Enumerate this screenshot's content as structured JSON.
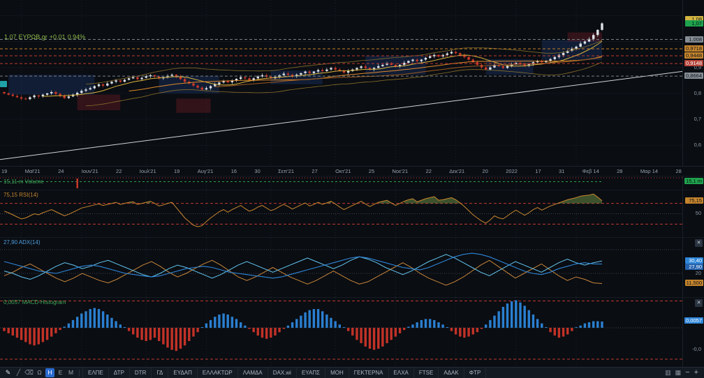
{
  "ui": {
    "close_glyph": "✕"
  },
  "main_chart": {
    "legend": {
      "price": "1,07",
      "symbol": "ΕΥΡΩΒ.gr",
      "change": "+0,01",
      "change_pct": "0,94%"
    },
    "scale_badges": [
      {
        "text": "1,08",
        "price": 1.085,
        "type": "yellow"
      },
      {
        "text": "1,07",
        "price": 1.068,
        "type": "green"
      },
      {
        "text": "1,008",
        "price": 1.008,
        "type": "gray"
      },
      {
        "text": "0,9718",
        "price": 0.9718,
        "type": "orange"
      },
      {
        "text": "0,9448",
        "price": 0.9448,
        "type": "orange"
      },
      {
        "text": "0,9148",
        "price": 0.9148,
        "type": "red"
      },
      {
        "text": "0,8664",
        "price": 0.8664,
        "type": "gray"
      }
    ],
    "scale_ticks": [
      {
        "text": "0,9",
        "price": 0.9
      },
      {
        "text": "0,8",
        "price": 0.8
      },
      {
        "text": "0,7",
        "price": 0.7
      },
      {
        "text": "0,6",
        "price": 0.6
      }
    ]
  },
  "time_axis": [
    "19",
    "Μαϊ'21",
    "24",
    "Ιουν'21",
    "22",
    "Ιουλ'21",
    "19",
    "Αυγ'21",
    "16",
    "30",
    "Σεπ'21",
    "27",
    "Οκτ'21",
    "25",
    "Νοε'21",
    "22",
    "Δεκ'21",
    "20",
    "2022",
    "17",
    "31",
    "Φεβ 14",
    "28",
    "Μαρ 14",
    "28"
  ],
  "volume_panel": {
    "legend": "15,11 m Volume",
    "badge": "15,1 m"
  },
  "rsi_panel": {
    "legend": "75,15 RSI(14)",
    "badge": "75,15",
    "tick": "50"
  },
  "adx_panel": {
    "legend": "27,90 ADX(14)",
    "tick": "20",
    "badges": [
      {
        "text": "30,40",
        "value": 30.4,
        "type": "blue"
      },
      {
        "text": "27,90",
        "value": 27.9,
        "type": "blue2"
      },
      {
        "text": "11,500",
        "value": 11.5,
        "type": "orange"
      }
    ]
  },
  "macd_panel": {
    "legend": "0,0057 MACD-Histogram",
    "badge": "0,0057",
    "tick": "-0,0"
  },
  "toolbar": {
    "tools": [
      {
        "name": "pencil-icon",
        "glyph": "✎",
        "bright": true
      },
      {
        "name": "line-tool-icon",
        "glyph": "╱",
        "bright": false
      },
      {
        "name": "eraser-icon",
        "glyph": "⌫",
        "bright": false
      }
    ],
    "intervals": [
      "Ω",
      "Η",
      "Ε",
      "Μ"
    ],
    "active_interval": "Η",
    "tabs": [
      "ΕΛΠΕ",
      "ΔΤΡ",
      "DTR",
      "ΓΔ",
      "ΕΥΔΑΠ",
      "ΕΛΛΑΚΤΩΡ",
      "ΛΑΜΔΑ",
      "DAX.wi",
      "ΕΥΑΠΣ",
      "ΜΟΗ",
      "ΓΕΚΤΕΡΝΑ",
      "ΕΛΧΑ",
      "FTSE",
      "ΑΔΑΚ",
      "ΦΤΡ"
    ],
    "right_controls": [
      {
        "name": "volume-style-icon",
        "glyph": "▥",
        "big": false
      },
      {
        "name": "indicators-icon",
        "glyph": "▦",
        "big": false
      },
      {
        "name": "zoom-out-button",
        "glyph": "−",
        "big": true
      },
      {
        "name": "zoom-in-button",
        "glyph": "+",
        "big": true
      }
    ]
  },
  "chart_data": {
    "type": "candlestick",
    "symbol": "ΕΥΡΩΒ.gr",
    "last_price": 1.07,
    "change": 0.01,
    "change_pct": 0.94,
    "price_axis": {
      "min": 0.52,
      "max": 1.16
    },
    "closes": [
      0.8,
      0.795,
      0.79,
      0.785,
      0.78,
      0.778,
      0.785,
      0.792,
      0.788,
      0.795,
      0.8,
      0.805,
      0.798,
      0.79,
      0.782,
      0.788,
      0.795,
      0.802,
      0.81,
      0.815,
      0.82,
      0.828,
      0.835,
      0.83,
      0.838,
      0.845,
      0.85,
      0.845,
      0.852,
      0.858,
      0.862,
      0.855,
      0.86,
      0.866,
      0.87,
      0.865,
      0.858,
      0.862,
      0.868,
      0.872,
      0.865,
      0.855,
      0.845,
      0.838,
      0.83,
      0.822,
      0.815,
      0.82,
      0.828,
      0.835,
      0.842,
      0.848,
      0.843,
      0.85,
      0.856,
      0.862,
      0.858,
      0.852,
      0.858,
      0.865,
      0.87,
      0.864,
      0.858,
      0.863,
      0.87,
      0.876,
      0.872,
      0.866,
      0.872,
      0.878,
      0.884,
      0.878,
      0.884,
      0.89,
      0.886,
      0.892,
      0.898,
      0.892,
      0.886,
      0.88,
      0.886,
      0.892,
      0.898,
      0.904,
      0.898,
      0.892,
      0.898,
      0.905,
      0.91,
      0.916,
      0.91,
      0.904,
      0.91,
      0.918,
      0.925,
      0.93,
      0.924,
      0.93,
      0.937,
      0.943,
      0.948,
      0.942,
      0.948,
      0.954,
      0.96,
      0.955,
      0.948,
      0.94,
      0.93,
      0.92,
      0.91,
      0.9,
      0.892,
      0.9,
      0.91,
      0.905,
      0.898,
      0.905,
      0.912,
      0.918,
      0.912,
      0.906,
      0.912,
      0.92,
      0.926,
      0.92,
      0.926,
      0.932,
      0.94,
      0.948,
      0.956,
      0.964,
      0.972,
      0.98,
      0.992,
      1.0,
      1.01,
      1.025,
      1.045,
      1.07
    ],
    "month_gridlines": [
      4,
      18,
      33,
      47,
      62,
      77,
      91,
      105,
      119,
      133
    ],
    "zones": [
      {
        "i0": 1,
        "i1": 21,
        "p0": 0.795,
        "p1": 0.872,
        "c": "navy"
      },
      {
        "i0": 17,
        "i1": 27,
        "p0": 0.735,
        "p1": 0.795,
        "c": "maroon"
      },
      {
        "i0": 36,
        "i1": 50,
        "p0": 0.8,
        "p1": 0.868,
        "c": "navy"
      },
      {
        "i0": 40,
        "i1": 48,
        "p0": 0.725,
        "p1": 0.78,
        "c": "maroon"
      },
      {
        "i0": 62,
        "i1": 74,
        "p0": 0.835,
        "p1": 0.888,
        "c": "navy"
      },
      {
        "i0": 84,
        "i1": 98,
        "p0": 0.872,
        "p1": 0.945,
        "c": "navy"
      },
      {
        "i0": 112,
        "i1": 123,
        "p0": 0.872,
        "p1": 0.932,
        "c": "navy"
      },
      {
        "i0": 125,
        "i1": 139,
        "p0": 0.928,
        "p1": 1.005,
        "c": "navy"
      },
      {
        "i0": 131,
        "i1": 139,
        "p0": 1.0,
        "p1": 1.035,
        "c": "maroon"
      }
    ],
    "trendline": {
      "p_start": 0.545,
      "p_end": 0.885
    },
    "hlines": [
      {
        "p": 1.008,
        "color": "#7a8288"
      },
      {
        "p": 0.9718,
        "color": "#c5842c"
      },
      {
        "p": 0.9448,
        "color": "#c03a30"
      },
      {
        "p": 0.9148,
        "color": "#c03a30"
      },
      {
        "p": 0.8664,
        "color": "#7a8288"
      }
    ],
    "volume": {
      "current_m": 15.11,
      "spike_index": 17
    },
    "rsi": {
      "period": 14,
      "current": 75.15,
      "overbought": 70,
      "oversold": 30,
      "values": [
        55,
        52,
        48,
        44,
        40,
        42,
        46,
        50,
        48,
        52,
        55,
        58,
        54,
        50,
        46,
        49,
        53,
        57,
        61,
        63,
        65,
        67,
        69,
        66,
        68,
        70,
        72,
        68,
        70,
        72,
        73,
        68,
        70,
        72,
        74,
        70,
        65,
        67,
        70,
        72,
        62,
        52,
        42,
        35,
        28,
        25,
        27,
        35,
        42,
        48,
        54,
        58,
        53,
        58,
        62,
        66,
        60,
        55,
        58,
        63,
        66,
        61,
        56,
        59,
        64,
        68,
        64,
        59,
        63,
        67,
        71,
        65,
        68,
        72,
        68,
        71,
        74,
        69,
        63,
        58,
        62,
        66,
        70,
        74,
        69,
        64,
        68,
        72,
        74,
        76,
        71,
        66,
        70,
        74,
        77,
        79,
        73,
        76,
        79,
        81,
        83,
        76,
        77,
        79,
        81,
        77,
        71,
        64,
        56,
        48,
        42,
        36,
        32,
        38,
        46,
        42,
        40,
        46,
        52,
        57,
        52,
        47,
        52,
        58,
        62,
        57,
        61,
        65,
        68,
        71,
        74,
        77,
        79,
        81,
        84,
        85,
        86,
        88,
        82,
        75
      ]
    },
    "adx": {
      "period": 14,
      "current": 27.9,
      "plus_di_current": 30.4,
      "minus_di_current": 11.5,
      "adx": [
        30,
        28,
        26,
        24,
        22,
        21,
        20,
        22,
        24,
        26,
        27,
        26,
        24,
        22,
        20,
        19,
        18,
        17,
        18,
        20,
        22,
        24,
        25,
        26,
        25,
        23,
        21,
        20,
        19,
        18,
        17,
        16,
        17,
        19,
        21,
        23,
        25,
        27,
        29,
        31,
        33,
        34,
        33,
        31,
        29,
        27,
        25,
        24,
        23,
        25,
        28,
        31,
        34,
        36,
        37,
        36,
        34,
        31,
        28,
        25,
        22,
        20,
        19,
        21,
        24,
        26,
        28,
        29,
        28,
        27.9
      ],
      "plus_di": [
        22,
        20,
        17,
        15,
        18,
        22,
        26,
        29,
        27,
        24,
        26,
        29,
        31,
        28,
        25,
        22,
        19,
        17,
        20,
        24,
        27,
        25,
        22,
        19,
        16,
        19,
        23,
        27,
        30,
        27,
        24,
        21,
        24,
        27,
        30,
        33,
        30,
        27,
        24,
        27,
        31,
        34,
        32,
        29,
        25,
        22,
        19,
        22,
        26,
        30,
        33,
        36,
        33,
        29,
        25,
        21,
        18,
        22,
        26,
        30,
        27,
        24,
        21,
        25,
        29,
        32,
        29,
        27,
        29,
        30.4
      ],
      "minus_di": [
        18,
        21,
        25,
        28,
        24,
        20,
        16,
        13,
        16,
        20,
        17,
        14,
        12,
        15,
        19,
        23,
        27,
        30,
        26,
        21,
        17,
        20,
        24,
        28,
        31,
        27,
        22,
        17,
        14,
        17,
        21,
        25,
        21,
        17,
        14,
        11,
        14,
        18,
        22,
        18,
        14,
        11,
        13,
        17,
        21,
        25,
        29,
        25,
        20,
        16,
        13,
        10,
        13,
        17,
        22,
        27,
        31,
        26,
        21,
        16,
        20,
        24,
        28,
        23,
        18,
        14,
        17,
        15,
        12,
        11.5
      ]
    },
    "macd_histogram_milli": [
      -3,
      -5,
      -7,
      -9,
      -11,
      -13,
      -15,
      -16,
      -15,
      -13,
      -11,
      -8,
      -5,
      -2,
      1,
      4,
      7,
      10,
      13,
      15,
      17,
      18,
      17,
      15,
      12,
      9,
      6,
      3,
      0,
      -3,
      -6,
      -9,
      -11,
      -12,
      -11,
      -9,
      -12,
      -15,
      -18,
      -20,
      -21,
      -19,
      -16,
      -12,
      -8,
      -4,
      0,
      4,
      7,
      10,
      12,
      13,
      12,
      10,
      8,
      5,
      2,
      -1,
      -4,
      -7,
      -9,
      -10,
      -9,
      -7,
      -4,
      -1,
      2,
      5,
      8,
      11,
      14,
      16,
      17,
      17,
      15,
      12,
      9,
      6,
      3,
      0,
      -3,
      -7,
      -11,
      -14,
      -17,
      -19,
      -20,
      -19,
      -17,
      -14,
      -11,
      -8,
      -5,
      -2,
      1,
      3,
      5,
      7,
      8,
      8,
      7,
      5,
      3,
      0,
      -3,
      -6,
      -8,
      -9,
      -8,
      -6,
      -4,
      -1,
      3,
      7,
      11,
      15,
      19,
      22,
      24,
      25,
      23,
      20,
      16,
      12,
      8,
      4,
      0,
      -4,
      -7,
      -9,
      -8,
      -6,
      -3,
      0,
      2,
      4,
      5,
      6,
      6,
      5.7
    ],
    "macd_current": 0.0057
  }
}
